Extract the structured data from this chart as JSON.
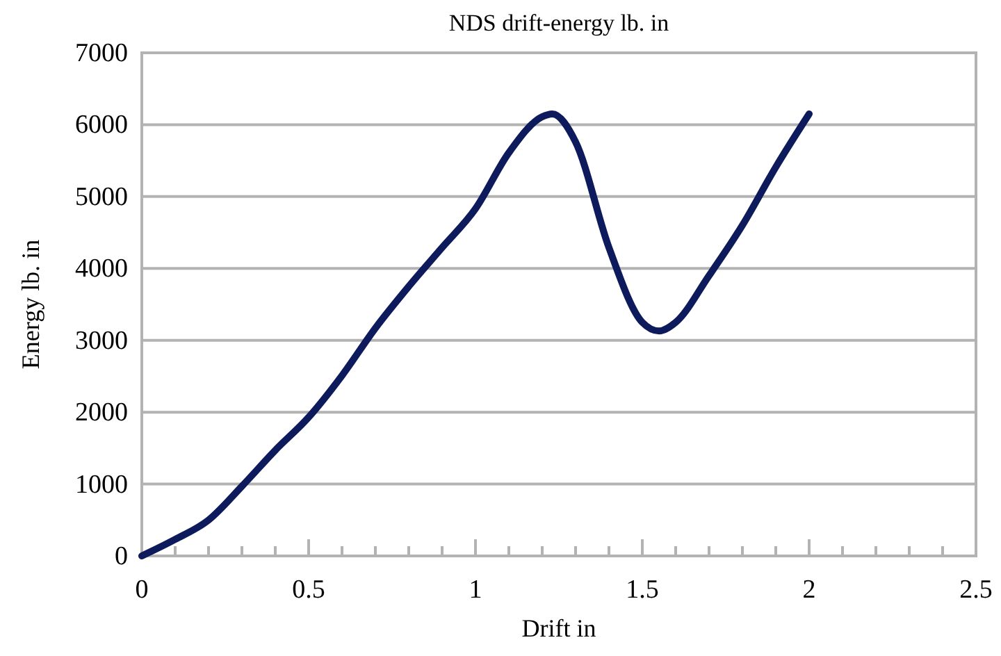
{
  "chart_data": {
    "type": "line",
    "title": "NDS drift-energy lb. in",
    "xlabel": "Drift in",
    "ylabel": "Energy lb. in",
    "x": [
      0,
      0.1,
      0.2,
      0.3,
      0.4,
      0.5,
      0.6,
      0.7,
      0.8,
      0.9,
      1.0,
      1.1,
      1.2,
      1.23,
      1.3,
      1.4,
      1.5,
      1.55,
      1.6,
      1.7,
      1.8,
      1.9,
      2.0
    ],
    "series": [
      {
        "color": "#0d1a5c",
        "values": [
          0,
          230,
          500,
          970,
          1470,
          1930,
          2510,
          3170,
          3750,
          4290,
          4830,
          5610,
          6110,
          6150,
          5760,
          4290,
          3250,
          3130,
          3250,
          3900,
          4600,
          5410,
          6150
        ]
      }
    ],
    "xlim": [
      0,
      2.5
    ],
    "xticks": [
      0,
      {
        "value": 0.1,
        "label": null
      },
      {
        "value": 0.2,
        "label": null
      },
      {
        "value": 0.3,
        "label": null
      },
      {
        "value": 0.4,
        "label": null
      },
      0.5,
      {
        "value": 0.6,
        "label": null
      },
      {
        "value": 0.7,
        "label": null
      },
      {
        "value": 0.8,
        "label": null
      },
      {
        "value": 0.9,
        "label": null
      },
      1,
      {
        "value": 1.1,
        "label": null
      },
      {
        "value": 1.2,
        "label": null
      },
      {
        "value": 1.3,
        "label": null
      },
      {
        "value": 1.4,
        "label": null
      },
      1.5,
      {
        "value": 1.6,
        "label": null
      },
      {
        "value": 1.7,
        "label": null
      },
      {
        "value": 1.8,
        "label": null
      },
      {
        "value": 1.9,
        "label": null
      },
      2,
      {
        "value": 2.1,
        "label": null
      },
      {
        "value": 2.2,
        "label": null
      },
      {
        "value": 2.3,
        "label": null
      },
      {
        "value": 2.4,
        "label": null
      },
      2.5
    ],
    "ylim": [
      0,
      7000
    ],
    "yticks": [
      0,
      1000,
      2000,
      3000,
      4000,
      5000,
      6000,
      7000
    ],
    "grid": "y",
    "marker": "none",
    "line_style": "solid"
  }
}
